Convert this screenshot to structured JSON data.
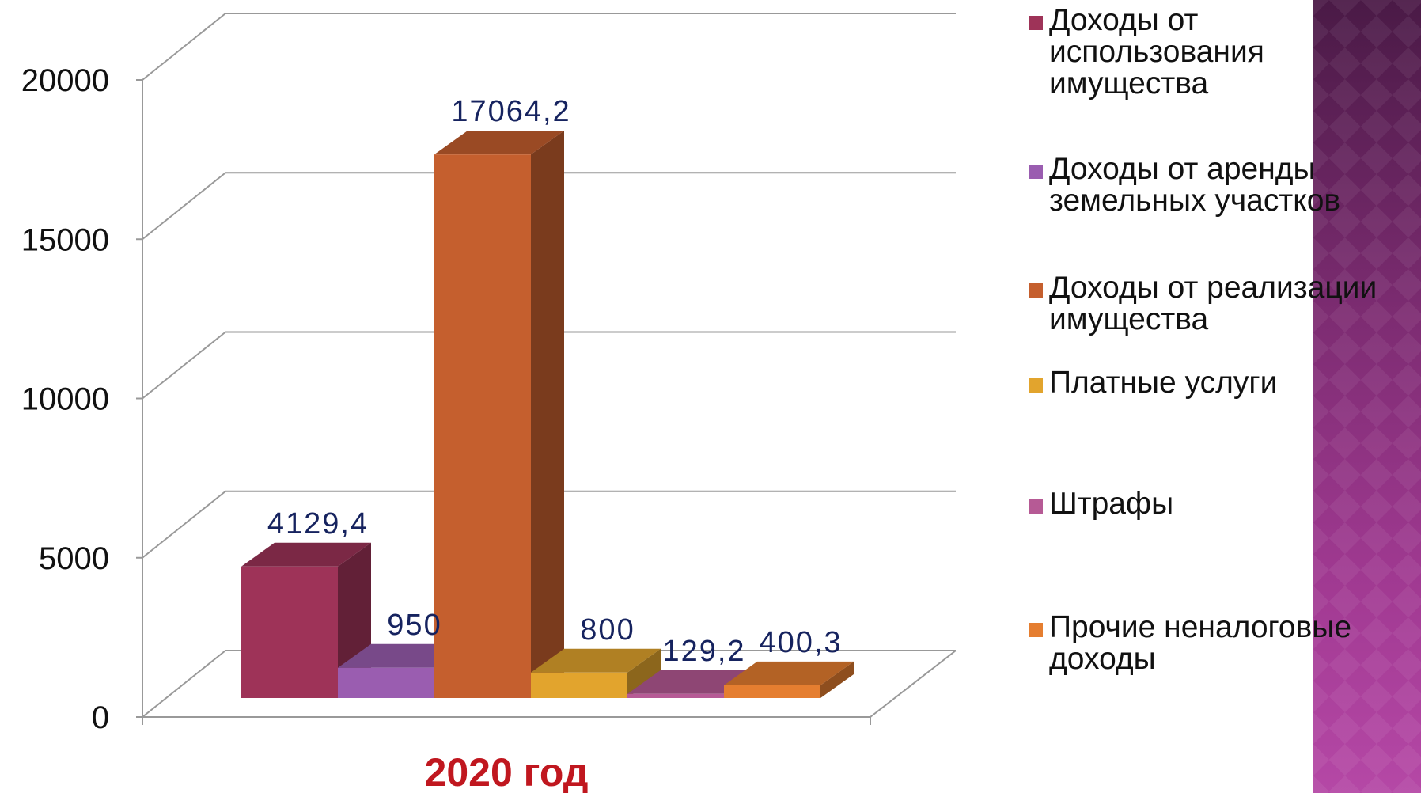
{
  "chart_data": {
    "type": "bar",
    "title": "",
    "xlabel": "2020 год",
    "ylabel": "",
    "ylim": [
      0,
      20000
    ],
    "yticks": [
      0,
      5000,
      10000,
      15000,
      20000
    ],
    "categories": [
      "2020 год"
    ],
    "grid": true,
    "legend_position": "right",
    "series": [
      {
        "name": "Доходы от использования имущества",
        "value": 4129.4,
        "label": "4129,4",
        "color": "#9E3358"
      },
      {
        "name": "Доходы от аренды земельных участков",
        "value": 950,
        "label": "950",
        "color": "#9A5DB0"
      },
      {
        "name": "Доходы от реализации имущества",
        "value": 17064.2,
        "label": "17064,2",
        "color": "#C55F2E"
      },
      {
        "name": "Платные услуги",
        "value": 800,
        "label": "800",
        "color": "#E2A42D"
      },
      {
        "name": "Штрафы",
        "value": 129.2,
        "label": "129,2",
        "color": "#B65A95"
      },
      {
        "name": "Прочие неналоговые доходы",
        "value": 400.3,
        "label": "400,3",
        "color": "#E57E30"
      }
    ]
  },
  "legend": [
    {
      "label": "Доходы от\nиспользования\nимущества"
    },
    {
      "label": "Доходы от аренды\nземельных участков"
    },
    {
      "label": "Доходы от реализации\nимущества"
    },
    {
      "label": "Платные услуги"
    },
    {
      "label": "Штрафы"
    },
    {
      "label": "Прочие неналоговые\nдоходы"
    }
  ],
  "theme": {
    "axis_label_color": "#C0171F",
    "data_label_color": "#16235F",
    "grid_color": "#999999"
  }
}
